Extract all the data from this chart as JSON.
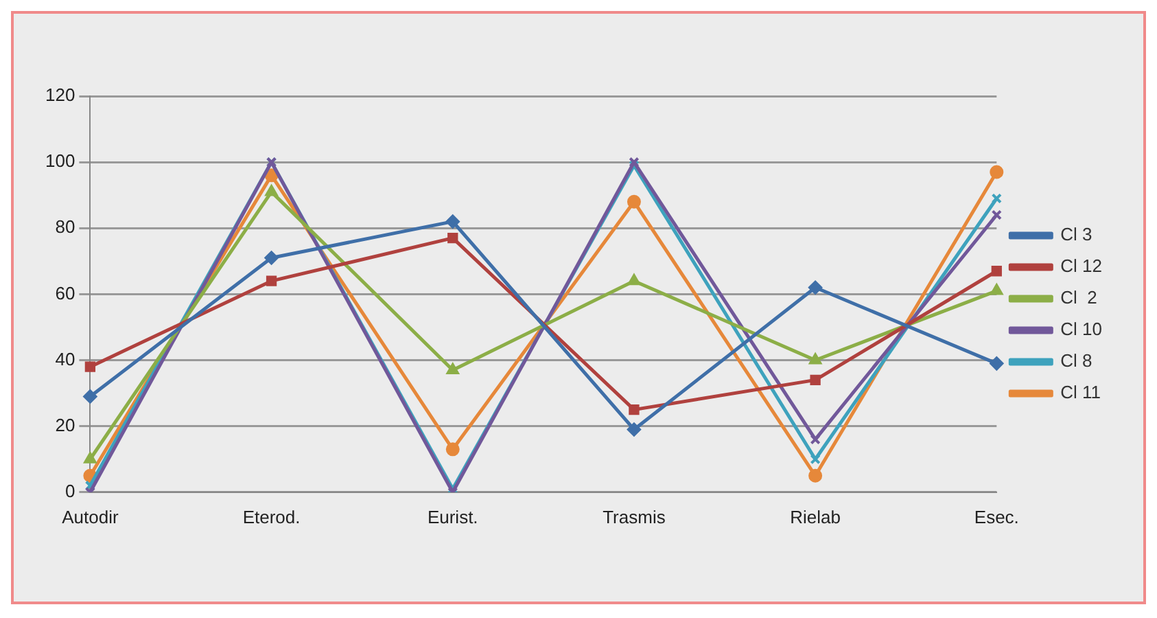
{
  "chart_data": {
    "type": "line",
    "categories": [
      "Autodir",
      "Eterod.",
      "Eurist.",
      "Trasmis",
      "Rielab",
      "Esec."
    ],
    "series": [
      {
        "name": "Cl 3",
        "color": "#3f6fa8",
        "marker": "diamond",
        "values": [
          29,
          71,
          82,
          19,
          62,
          39
        ]
      },
      {
        "name": "Cl 12",
        "color": "#b0413e",
        "marker": "square",
        "values": [
          38,
          64,
          77,
          25,
          34,
          67
        ]
      },
      {
        "name": "Cl  2",
        "color": "#8cae47",
        "marker": "triangle",
        "values": [
          10,
          91,
          37,
          64,
          40,
          61
        ]
      },
      {
        "name": "Cl 10",
        "color": "#71589a",
        "marker": "cross",
        "values": [
          0,
          100,
          0,
          100,
          16,
          84
        ]
      },
      {
        "name": "Cl 8",
        "color": "#3ea2bd",
        "marker": "cross",
        "values": [
          2,
          100,
          1,
          99,
          10,
          89
        ]
      },
      {
        "name": "Cl 11",
        "color": "#e6883a",
        "marker": "circle",
        "values": [
          5,
          96,
          13,
          88,
          5,
          97
        ]
      }
    ],
    "ylim": [
      0,
      120
    ],
    "yticks": [
      0,
      20,
      40,
      60,
      80,
      100,
      120
    ],
    "grid": "y",
    "legend": "right"
  }
}
